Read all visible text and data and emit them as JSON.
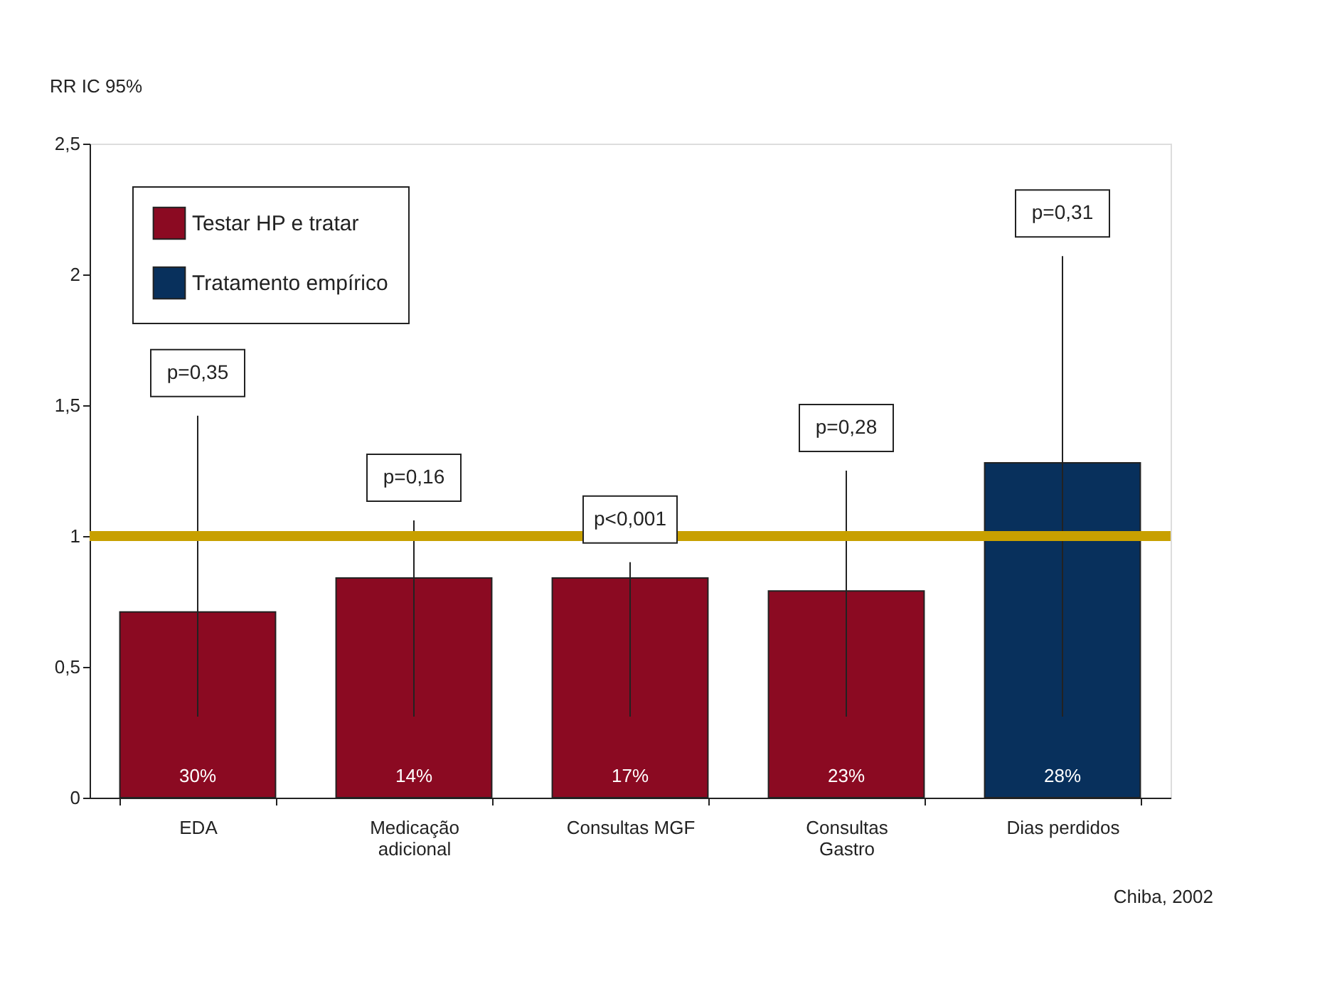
{
  "chart_data": {
    "type": "bar",
    "ylabel": "RR IC 95%",
    "categories": [
      "EDA",
      "Medicação\nadicional",
      "Consultas MGF",
      "Consultas\nGastro",
      "Dias perdidos"
    ],
    "series": [
      {
        "name": "Testar HP e tratar",
        "color": "#8b0a22",
        "values": [
          0.71,
          0.84,
          0.84,
          0.79,
          null
        ],
        "errors": [
          [
            0.31,
            1.46
          ],
          [
            0.31,
            1.06
          ],
          [
            0.31,
            0.9
          ],
          [
            0.31,
            1.25
          ],
          null
        ]
      },
      {
        "name": "Tratamento empírico",
        "color": "#08305c",
        "values": [
          null,
          null,
          null,
          null,
          1.28
        ],
        "errors": [
          null,
          null,
          null,
          null,
          [
            0.31,
            2.07
          ]
        ]
      }
    ],
    "ylim": [
      0,
      2.5
    ],
    "yticks": [
      0,
      {
        "value": 0.5,
        "label": "0,5"
      },
      1,
      {
        "value": 1.5,
        "label": "1,5"
      },
      2,
      {
        "value": 2.5,
        "label": "2,5"
      }
    ],
    "ref_lines": [
      {
        "axis": "y",
        "value": 1,
        "label": null,
        "color": "#c8a000"
      }
    ],
    "annotations": [
      {
        "text": "p=0,35",
        "x": "EDA",
        "y": 1.46
      },
      {
        "text": "p=0,16",
        "x": "Medicação\nadicional",
        "y": 1.06
      },
      {
        "text": "p<0,001",
        "x": "Consultas MGF",
        "y": 0.9
      },
      {
        "text": "p=0,28",
        "x": "Consultas\nGastro",
        "y": 1.25
      },
      {
        "text": "p=0,31",
        "x": "Dias perdidos",
        "y": 2.07
      },
      "30%",
      "14%",
      "17%",
      "23%",
      "28%",
      "Chiba, 2002"
    ],
    "grid": false,
    "legend": "top left"
  }
}
